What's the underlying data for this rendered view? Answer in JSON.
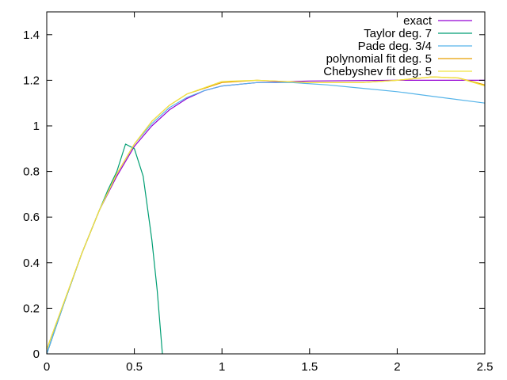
{
  "chart_data": {
    "type": "line",
    "title": "",
    "xlabel": "",
    "ylabel": "",
    "xlim": [
      0,
      2.5
    ],
    "ylim": [
      0,
      1.5
    ],
    "grid": false,
    "legend_position": "top-right",
    "x_ticks": [
      {
        "value": 0,
        "label": "0"
      },
      {
        "value": 0.5,
        "label": "0.5"
      },
      {
        "value": 1,
        "label": "1"
      },
      {
        "value": 1.5,
        "label": "1.5"
      },
      {
        "value": 2,
        "label": "2"
      },
      {
        "value": 2.5,
        "label": "2.5"
      }
    ],
    "y_ticks": [
      {
        "value": 0,
        "label": "0"
      },
      {
        "value": 0.2,
        "label": "0.2"
      },
      {
        "value": 0.4,
        "label": "0.4"
      },
      {
        "value": 0.6,
        "label": "0.6"
      },
      {
        "value": 0.8,
        "label": "0.8"
      },
      {
        "value": 1,
        "label": "1"
      },
      {
        "value": 1.2,
        "label": "1.2"
      },
      {
        "value": 1.4,
        "label": "1.4"
      }
    ],
    "series": [
      {
        "name": "exact",
        "color": "#9400d3",
        "x": [
          0,
          0.1,
          0.2,
          0.3,
          0.4,
          0.5,
          0.6,
          0.7,
          0.8,
          0.9,
          1.0,
          1.2,
          1.5,
          2.0,
          2.5
        ],
        "y": [
          0,
          0.225,
          0.44,
          0.63,
          0.78,
          0.91,
          1.0,
          1.07,
          1.12,
          1.155,
          1.175,
          1.19,
          1.197,
          1.2,
          1.2
        ]
      },
      {
        "name": "Taylor deg. 7",
        "color": "#009e73",
        "x": [
          0,
          0.1,
          0.2,
          0.3,
          0.35,
          0.4,
          0.45,
          0.5,
          0.55,
          0.6,
          0.63,
          0.66
        ],
        "y": [
          0,
          0.225,
          0.44,
          0.63,
          0.72,
          0.8,
          0.92,
          0.9,
          0.78,
          0.5,
          0.28,
          0
        ]
      },
      {
        "name": "Pade deg. 3/4",
        "color": "#56b4e9",
        "x": [
          0,
          0.1,
          0.2,
          0.3,
          0.4,
          0.5,
          0.6,
          0.7,
          0.8,
          0.9,
          1.0,
          1.2,
          1.4,
          1.6,
          1.8,
          2.0,
          2.2,
          2.5
        ],
        "y": [
          0,
          0.225,
          0.44,
          0.63,
          0.79,
          0.92,
          1.01,
          1.08,
          1.125,
          1.155,
          1.175,
          1.19,
          1.19,
          1.18,
          1.165,
          1.15,
          1.13,
          1.1
        ]
      },
      {
        "name": "polynomial fit deg. 5",
        "color": "#e69f00",
        "x": [
          0,
          0.1,
          0.2,
          0.3,
          0.4,
          0.5,
          0.6,
          0.7,
          0.8,
          1.0,
          1.2,
          1.5,
          1.8,
          2.0,
          2.2,
          2.35,
          2.5
        ],
        "y": [
          0.02,
          0.23,
          0.44,
          0.63,
          0.79,
          0.92,
          1.02,
          1.09,
          1.14,
          1.19,
          1.2,
          1.19,
          1.19,
          1.2,
          1.215,
          1.21,
          1.18
        ]
      },
      {
        "name": "Chebyshev fit deg. 5",
        "color": "#f0e442",
        "x": [
          0,
          0.1,
          0.2,
          0.3,
          0.4,
          0.5,
          0.6,
          0.7,
          0.8,
          1.0,
          1.2,
          1.5,
          1.8,
          2.0,
          2.2,
          2.35,
          2.5
        ],
        "y": [
          0.02,
          0.23,
          0.44,
          0.63,
          0.79,
          0.92,
          1.02,
          1.09,
          1.14,
          1.195,
          1.2,
          1.19,
          1.19,
          1.2,
          1.215,
          1.21,
          1.175
        ]
      }
    ]
  }
}
